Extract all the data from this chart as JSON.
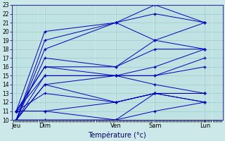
{
  "xlabel": "Température (°c)",
  "ylim": [
    10,
    23
  ],
  "yticks": [
    10,
    11,
    12,
    13,
    14,
    15,
    16,
    17,
    18,
    19,
    20,
    21,
    22,
    23
  ],
  "xtick_labels": [
    "Jeu",
    "Dim",
    "Ven",
    "Sam",
    "Lun"
  ],
  "bg_color": "#cce8e8",
  "line_color": "#0000bb",
  "grid_color": "#99cccc",
  "x_positions": [
    0,
    0.138,
    0.483,
    0.672,
    0.914
  ],
  "series": [
    [
      10,
      19,
      21,
      23,
      21
    ],
    [
      11,
      20,
      21,
      22,
      21
    ],
    [
      10,
      18,
      21,
      19,
      21
    ],
    [
      10,
      17,
      16,
      19,
      18
    ],
    [
      11,
      16,
      16,
      18,
      18
    ],
    [
      11,
      16,
      15,
      16,
      18
    ],
    [
      10,
      15,
      15,
      15,
      17
    ],
    [
      11,
      15,
      15,
      15,
      16
    ],
    [
      10,
      14,
      15,
      14,
      13
    ],
    [
      10,
      14,
      12,
      13,
      13
    ],
    [
      11,
      13,
      12,
      13,
      12
    ],
    [
      11,
      11,
      12,
      13,
      13
    ],
    [
      11,
      11,
      10,
      13,
      12
    ],
    [
      10,
      10,
      10,
      11,
      12
    ]
  ]
}
